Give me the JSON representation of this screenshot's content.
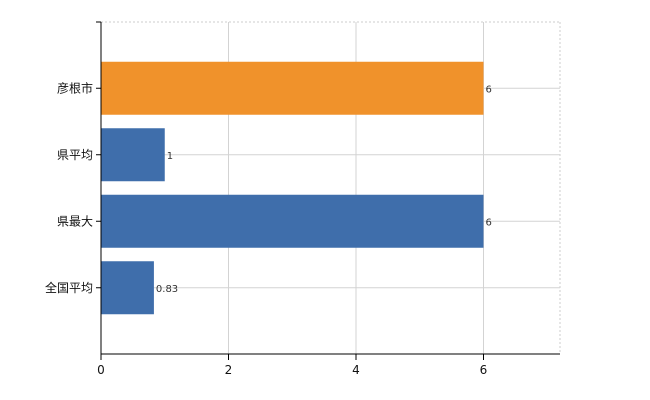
{
  "chart_data": {
    "type": "bar",
    "orientation": "horizontal",
    "categories": [
      "彦根市",
      "県平均",
      "県最大",
      "全国平均"
    ],
    "values": [
      6,
      1,
      6,
      0.83
    ],
    "value_labels": [
      "6",
      "1",
      "6",
      "0.83"
    ],
    "bar_colors": [
      "#f0922b",
      "#3f6eab",
      "#3f6eab",
      "#3f6eab"
    ],
    "xlim": [
      0,
      7.2
    ],
    "xticks": [
      0,
      2,
      4,
      6
    ],
    "xtick_labels": [
      "0",
      "2",
      "4",
      "6"
    ],
    "grid": true,
    "title": "",
    "xlabel": "",
    "ylabel": ""
  }
}
